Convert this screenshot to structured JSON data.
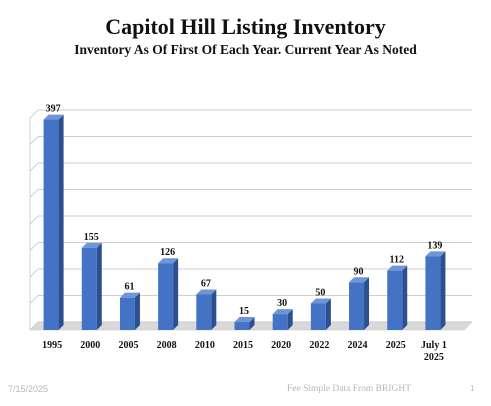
{
  "chart_data": {
    "type": "bar",
    "title": "Capitol Hill Listing Inventory",
    "subtitle": "Inventory As Of First Of Each Year. Current Year As Noted",
    "categories": [
      "1995",
      "2000",
      "2005",
      "2008",
      "2010",
      "2015",
      "2020",
      "2022",
      "2024",
      "2025",
      "July 1 2025"
    ],
    "category_lines": [
      [
        "1995"
      ],
      [
        "2000"
      ],
      [
        "2005"
      ],
      [
        "2008"
      ],
      [
        "2010"
      ],
      [
        "2015"
      ],
      [
        "2020"
      ],
      [
        "2022"
      ],
      [
        "2024"
      ],
      [
        "2025"
      ],
      [
        "July 1",
        "2025"
      ]
    ],
    "values": [
      397,
      155,
      61,
      126,
      67,
      15,
      30,
      50,
      90,
      112,
      139
    ],
    "ylim": [
      0,
      400
    ],
    "grid": true,
    "data_labels": true,
    "colors": {
      "bar": "#4472C4",
      "bar_side": "#2c4f8f",
      "bar_top": "#6e95d8",
      "grid": "#cfcfcf",
      "floor": "#d9d9d9"
    }
  },
  "footer": {
    "date": "7/15/2025",
    "source": "Fee Simple Data From BRIGHT",
    "page": "1"
  }
}
